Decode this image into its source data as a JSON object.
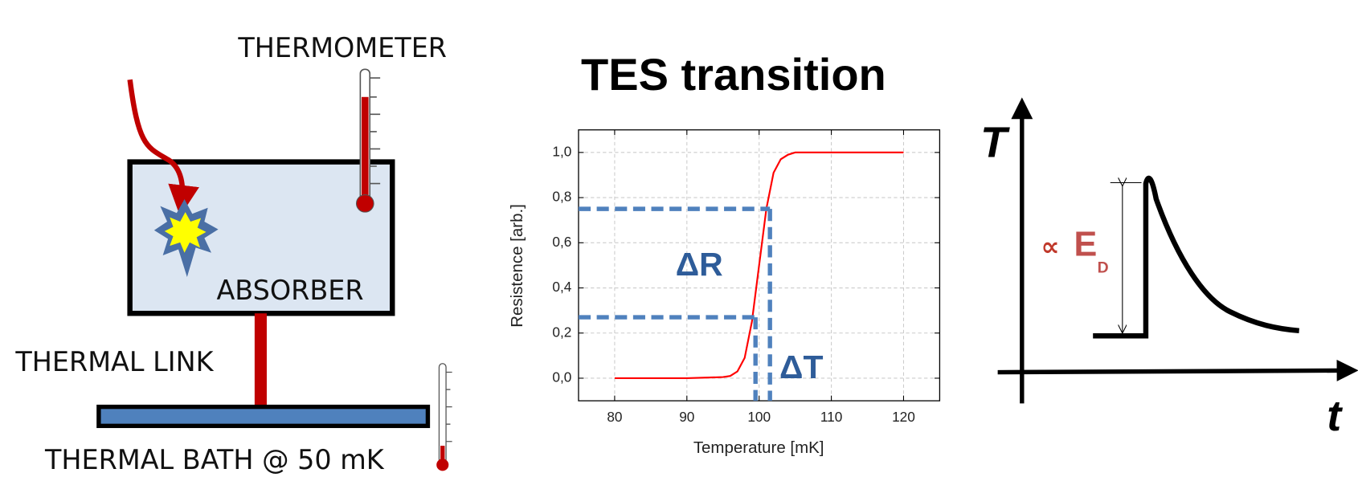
{
  "left_diagram": {
    "thermometer_label": "THERMOMETER",
    "absorber_label": "ABSORBER",
    "link_label": "THERMAL LINK",
    "bath_label": "THERMAL BATH @ 50 mK"
  },
  "chart_data": {
    "type": "line",
    "title": "TES transition",
    "x_label": "Temperature [mK]",
    "y_label": "Resistence [arb.]",
    "x": [
      80,
      90,
      95,
      96,
      97,
      98,
      99,
      100,
      101,
      102,
      103,
      104,
      105,
      110,
      120
    ],
    "series": [
      {
        "color": "#ff0000",
        "values": [
          0,
          0,
          0.005,
          0.01,
          0.03,
          0.09,
          0.25,
          0.5,
          0.75,
          0.91,
          0.97,
          0.99,
          1,
          1,
          1
        ]
      }
    ],
    "xlim": [
      75,
      125
    ],
    "ylim": [
      -0.1,
      1.1
    ],
    "xticks": [
      80,
      90,
      100,
      110,
      120
    ],
    "yticks": [
      {
        "value": 0,
        "label": "0,0"
      },
      {
        "value": 0.2,
        "label": "0,2"
      },
      {
        "value": 0.4,
        "label": "0,4"
      },
      {
        "value": 0.6,
        "label": "0,6"
      },
      {
        "value": 0.8,
        "label": "0,8"
      },
      {
        "value": 1,
        "label": "1,0"
      }
    ],
    "grid": true,
    "annotations": [
      {
        "label": "ΔR",
        "y": [
          0.27,
          0.75
        ]
      },
      {
        "label": "ΔT",
        "x": [
          99.5,
          101.5
        ]
      }
    ]
  },
  "pulse_diagram": {
    "y_axis_label": "T",
    "x_axis_label": "t",
    "symbol": "∝",
    "energy": "E",
    "subscript": "D"
  }
}
